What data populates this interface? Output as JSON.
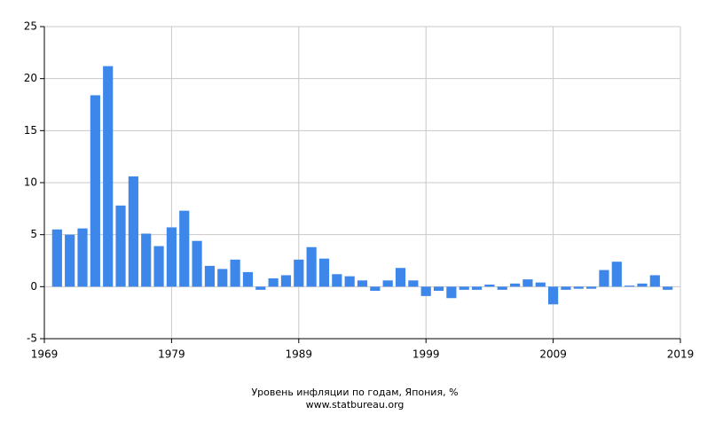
{
  "chart_data": {
    "type": "bar",
    "title": "Уровень инфляции по годам, Япония, %",
    "subtitle": "www.statbureau.org",
    "x": [
      1970,
      1971,
      1972,
      1973,
      1974,
      1975,
      1976,
      1977,
      1978,
      1979,
      1980,
      1981,
      1982,
      1983,
      1984,
      1985,
      1986,
      1987,
      1988,
      1989,
      1990,
      1991,
      1992,
      1993,
      1994,
      1995,
      1996,
      1997,
      1998,
      1999,
      2000,
      2001,
      2002,
      2003,
      2004,
      2005,
      2006,
      2007,
      2008,
      2009,
      2010,
      2011,
      2012,
      2013,
      2014,
      2015,
      2016,
      2017,
      2018
    ],
    "values": [
      5.5,
      5.0,
      5.6,
      18.4,
      21.2,
      7.8,
      10.6,
      5.1,
      3.9,
      5.7,
      7.3,
      4.4,
      2.0,
      1.7,
      2.6,
      1.4,
      -0.3,
      0.8,
      1.1,
      2.6,
      3.8,
      2.7,
      1.2,
      1.0,
      0.6,
      -0.4,
      0.6,
      1.8,
      0.6,
      -0.9,
      -0.4,
      -1.1,
      -0.3,
      -0.3,
      0.2,
      -0.3,
      0.3,
      0.7,
      0.4,
      -1.7,
      -0.3,
      -0.2,
      -0.2,
      1.6,
      2.4,
      0.1,
      0.3,
      1.1,
      -0.3
    ],
    "color": "#3d87eb",
    "xlim": [
      1969,
      2019
    ],
    "xticks": [
      1969,
      1979,
      1989,
      1999,
      2009,
      2019
    ],
    "ylim": [
      -5,
      25
    ],
    "yticks": [
      -5,
      0,
      5,
      10,
      15,
      20,
      25
    ],
    "grid": true
  }
}
